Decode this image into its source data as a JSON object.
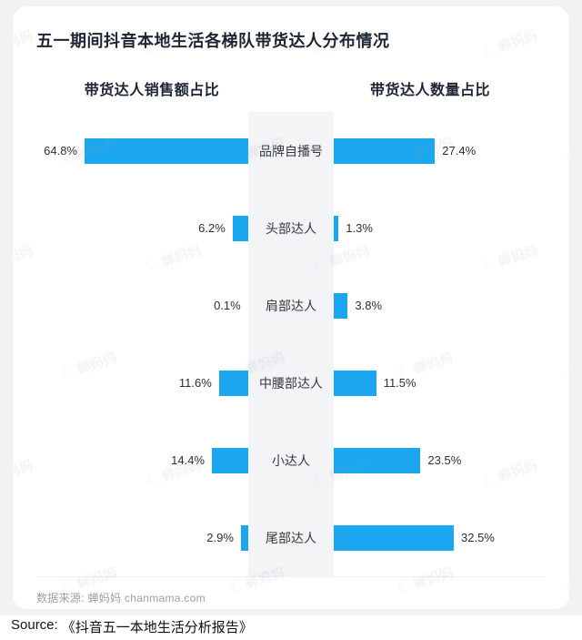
{
  "chart_data": {
    "type": "bar",
    "orientation": "horizontal-tornado",
    "title": "五一期间抖音本地生活各梯队带货达人分布情况",
    "categories": [
      "品牌自播号",
      "头部达人",
      "肩部达人",
      "中腰部达人",
      "小达人",
      "尾部达人"
    ],
    "series": [
      {
        "name": "带货达人销售额占比",
        "side": "left",
        "values": [
          64.8,
          6.2,
          0.1,
          11.6,
          14.4,
          2.9
        ]
      },
      {
        "name": "带货达人数量占比",
        "side": "right",
        "values": [
          27.4,
          1.3,
          3.8,
          11.5,
          23.5,
          32.5
        ]
      }
    ],
    "value_suffix": "%",
    "bar_color": "#1ba7f0",
    "legend_position": "top",
    "grid": false
  },
  "headers": {
    "left": "带货达人销售额占比",
    "right": "带货达人数量占比"
  },
  "footer": {
    "text": "数据来源: 蝉妈妈 chanmama.com"
  },
  "source": {
    "label": "Source:",
    "title": "《抖音五一本地生活分析报告》"
  },
  "watermark": {
    "text": "蝉妈妈",
    "icon": "☾"
  }
}
